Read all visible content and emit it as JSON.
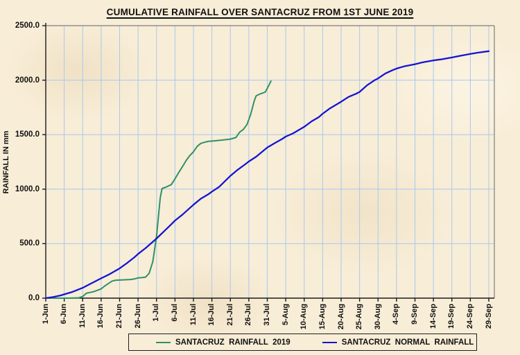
{
  "title": "CUMULATIVE RAINFALL OVER SANTACRUZ FROM 1ST JUNE 2019",
  "y_axis_title": "RAINFALL IN mm",
  "legend": {
    "items": [
      {
        "label": "SANTACRUZ  RAINFALL  2019",
        "color": "#2e9165"
      },
      {
        "label": "SANTACRUZ  NORMAL  RAINFALL",
        "color": "#1414d2"
      }
    ]
  },
  "colors": {
    "background": "#f8edd7",
    "gridline": "#a6c9ee",
    "axis": "#1a1a1a",
    "plot_border": "#7d7d7d",
    "rainfall_2019_line": "#2e9165",
    "normal_rainfall_line": "#1414d2",
    "text": "#111111"
  },
  "chart_data": {
    "type": "line",
    "title": "CUMULATIVE RAINFALL OVER SANTACRUZ FROM 1ST JUNE 2019",
    "xlabel": "",
    "ylabel": "RAINFALL IN mm",
    "ylim": [
      0,
      2500
    ],
    "y_tick_labels": [
      "0.0",
      "500.0",
      "1000.0",
      "1500.0",
      "2000.0",
      "2500.0"
    ],
    "y_tick_values": [
      0,
      500,
      1000,
      1500,
      2000,
      2500
    ],
    "x_tick_labels": [
      "1-Jun",
      "6-Jun",
      "11-Jun",
      "16-Jun",
      "21-Jun",
      "26-Jun",
      "1-Jul",
      "6-Jul",
      "11-Jul",
      "16-Jul",
      "21-Jul",
      "26-Jul",
      "31-Jul",
      "5-Aug",
      "10-Aug",
      "15-Aug",
      "20-Aug",
      "25-Aug",
      "30-Aug",
      "4-Sep",
      "9-Sep",
      "14-Sep",
      "19-Sep",
      "24-Sep",
      "29-Sep"
    ],
    "x_tick_days": [
      0,
      5,
      10,
      15,
      20,
      25,
      30,
      35,
      40,
      45,
      50,
      55,
      60,
      65,
      70,
      75,
      80,
      85,
      90,
      95,
      100,
      105,
      110,
      115,
      120
    ],
    "x_range_days": [
      0,
      120
    ],
    "grid": "both",
    "legend_position": "bottom",
    "series": [
      {
        "name": "SANTACRUZ  RAINFALL  2019",
        "color": "#2e9165",
        "units": "mm cumulative vs days since 1-Jun",
        "points_day_mm": [
          [
            0,
            0
          ],
          [
            3,
            0
          ],
          [
            6,
            0
          ],
          [
            9,
            3
          ],
          [
            10,
            15
          ],
          [
            11,
            45
          ],
          [
            12,
            52
          ],
          [
            13,
            60
          ],
          [
            14,
            72
          ],
          [
            15,
            85
          ],
          [
            16,
            112
          ],
          [
            17,
            135
          ],
          [
            18,
            157
          ],
          [
            19,
            165
          ],
          [
            21,
            168
          ],
          [
            23,
            171
          ],
          [
            24,
            176
          ],
          [
            25,
            186
          ],
          [
            26,
            188
          ],
          [
            27,
            192
          ],
          [
            28,
            228
          ],
          [
            29,
            335
          ],
          [
            30,
            570
          ],
          [
            31,
            920
          ],
          [
            31.5,
            1005
          ],
          [
            32.5,
            1018
          ],
          [
            34,
            1042
          ],
          [
            35,
            1095
          ],
          [
            36,
            1152
          ],
          [
            37,
            1205
          ],
          [
            38,
            1262
          ],
          [
            39,
            1308
          ],
          [
            40,
            1342
          ],
          [
            41,
            1392
          ],
          [
            42,
            1420
          ],
          [
            43,
            1430
          ],
          [
            44,
            1438
          ],
          [
            46,
            1444
          ],
          [
            48,
            1451
          ],
          [
            50,
            1459
          ],
          [
            51.5,
            1473
          ],
          [
            52.5,
            1522
          ],
          [
            53.5,
            1548
          ],
          [
            54.5,
            1592
          ],
          [
            55.5,
            1685
          ],
          [
            56.5,
            1815
          ],
          [
            57,
            1857
          ],
          [
            58,
            1873
          ],
          [
            59,
            1885
          ],
          [
            59.5,
            1892
          ],
          [
            60.5,
            1958
          ],
          [
            61,
            1992
          ]
        ]
      },
      {
        "name": "SANTACRUZ  NORMAL  RAINFALL",
        "color": "#1414d2",
        "units": "mm cumulative vs days since 1-Jun",
        "points_day_mm": [
          [
            0,
            0
          ],
          [
            2,
            10
          ],
          [
            4,
            25
          ],
          [
            5,
            35
          ],
          [
            7,
            55
          ],
          [
            10,
            95
          ],
          [
            12,
            130
          ],
          [
            15,
            182
          ],
          [
            17,
            215
          ],
          [
            20,
            273
          ],
          [
            22,
            322
          ],
          [
            24,
            375
          ],
          [
            25,
            405
          ],
          [
            27,
            458
          ],
          [
            28,
            487
          ],
          [
            30,
            547
          ],
          [
            32,
            612
          ],
          [
            34,
            678
          ],
          [
            35,
            712
          ],
          [
            37,
            765
          ],
          [
            40,
            857
          ],
          [
            42,
            912
          ],
          [
            44,
            952
          ],
          [
            45,
            977
          ],
          [
            47,
            1022
          ],
          [
            50,
            1122
          ],
          [
            52,
            1178
          ],
          [
            54,
            1228
          ],
          [
            55,
            1254
          ],
          [
            57,
            1298
          ],
          [
            60,
            1382
          ],
          [
            62,
            1422
          ],
          [
            64,
            1460
          ],
          [
            65,
            1482
          ],
          [
            67,
            1512
          ],
          [
            70,
            1572
          ],
          [
            72,
            1622
          ],
          [
            74,
            1662
          ],
          [
            75,
            1692
          ],
          [
            77,
            1742
          ],
          [
            80,
            1802
          ],
          [
            82,
            1846
          ],
          [
            84,
            1875
          ],
          [
            85,
            1892
          ],
          [
            87,
            1952
          ],
          [
            89,
            1998
          ],
          [
            90,
            2016
          ],
          [
            92,
            2062
          ],
          [
            94,
            2092
          ],
          [
            95,
            2106
          ],
          [
            97,
            2126
          ],
          [
            100,
            2146
          ],
          [
            102,
            2163
          ],
          [
            105,
            2181
          ],
          [
            107,
            2190
          ],
          [
            110,
            2208
          ],
          [
            112,
            2222
          ],
          [
            115,
            2241
          ],
          [
            117,
            2252
          ],
          [
            120,
            2266
          ]
        ]
      }
    ]
  },
  "layout_note": "plot area bounded, light-blue gridlines, rotated x labels, boxed legend below"
}
